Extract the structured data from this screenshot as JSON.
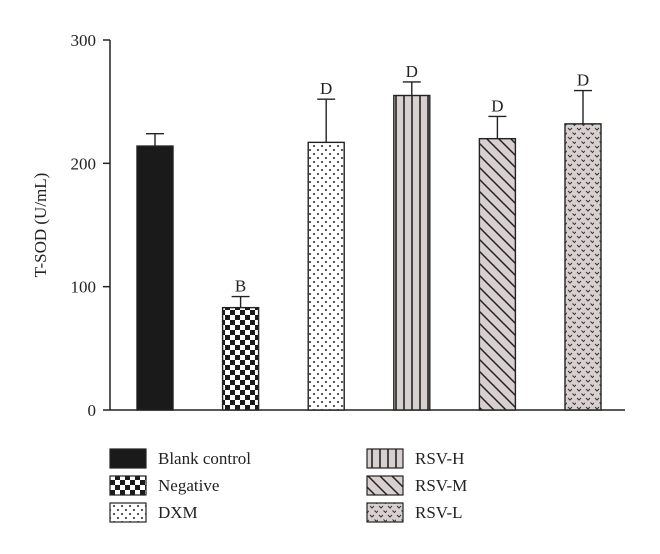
{
  "chart_data": {
    "type": "bar",
    "title": "",
    "xlabel": "",
    "ylabel": "T-SOD (U/mL)",
    "ylim": [
      0,
      300
    ],
    "yticks": [
      0,
      100,
      200,
      300
    ],
    "grid": false,
    "legend_position": "bottom",
    "categories": [
      "Blank control",
      "Negative",
      "DXM",
      "RSV-H",
      "RSV-M",
      "RSV-L"
    ],
    "values": [
      214,
      83,
      217,
      255,
      220,
      232
    ],
    "errors": [
      10,
      9,
      35,
      11,
      18,
      27
    ],
    "significance": [
      "",
      "B",
      "D",
      "D",
      "D",
      "D"
    ],
    "patterns": [
      "solid-black",
      "checkerboard",
      "dots",
      "vertical-lines",
      "diagonal-lines",
      "wavy-dots"
    ]
  }
}
